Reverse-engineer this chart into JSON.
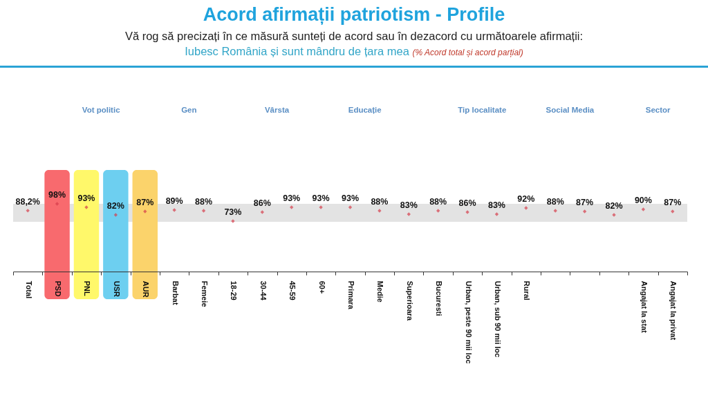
{
  "chart_data": {
    "type": "scatter",
    "title": "Acord afirmații patriotism - Profile",
    "subtitle": "Vă rog să precizați în ce măsură sunteți de acord sau în dezacord cu următoarele afirmații:",
    "categories": [
      "Total",
      "PSD",
      "PNL",
      "USR",
      "AUR",
      "Barbat",
      "Femeie",
      "18-29",
      "30-44",
      "45-59",
      "60+",
      "Primara",
      "Medie",
      "Superioara",
      "Bucuresti",
      "Urban, peste 90 mii loc",
      "Urban, sub 90 mii loc",
      "Rural",
      null,
      null,
      null,
      "Angajat la stat",
      "Angajat la privat"
    ],
    "series": [
      {
        "color": "#d63c4a",
        "values": [
          88.2,
          98,
          93,
          82,
          87,
          89,
          88,
          73,
          86,
          93,
          93,
          93,
          88,
          83,
          88,
          86,
          83,
          92,
          88,
          87,
          82,
          90,
          87
        ],
        "value_labels": [
          "88,2%",
          "98%",
          "93%",
          "82%",
          "87%",
          "89%",
          "88%",
          "73%",
          "86%",
          "93%",
          "93%",
          "93%",
          "88%",
          "83%",
          "88%",
          "86%",
          "83%",
          "92%",
          "88%",
          "87%",
          "82%",
          "90%",
          "87%"
        ]
      }
    ],
    "marker": "diamond",
    "legend": false,
    "grid": false,
    "tick_labels": "x",
    "bands": [
      {
        "axis": "y",
        "from": 72,
        "to": 98,
        "color": "#e3e3e3"
      },
      {
        "axis": "x",
        "from": "PSD",
        "to": "PSD",
        "color": "#f86a6e"
      },
      {
        "axis": "x",
        "from": "PNL",
        "to": "PNL",
        "color": "#fff86a"
      },
      {
        "axis": "x",
        "from": "USR",
        "to": "USR",
        "color": "#6dcff0"
      },
      {
        "axis": "x",
        "from": "AUR",
        "to": "AUR",
        "color": "#fbd36b"
      }
    ],
    "annotations": [
      "Iubesc România și sunt mândru de țara mea",
      "(% Acord total și acord parțial)",
      "Vot politic",
      "Gen",
      "Vârsta",
      "Educație",
      "Tip localitate",
      "Social Media",
      "Sector"
    ]
  }
}
